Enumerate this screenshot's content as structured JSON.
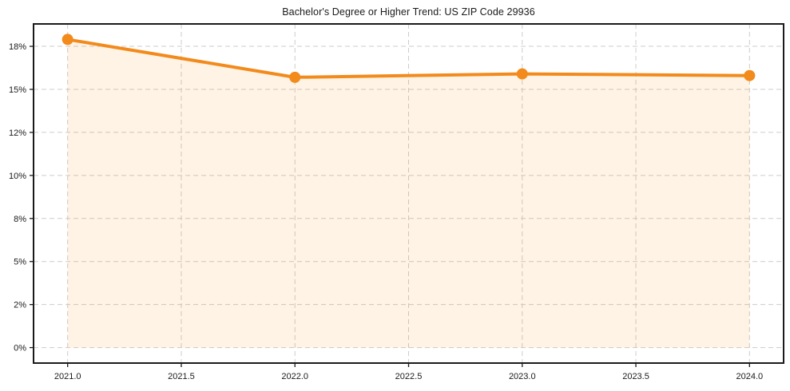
{
  "chart_data": {
    "type": "area",
    "title": "Bachelor's Degree or Higher Trend: US ZIP Code 29936",
    "x": [
      2021,
      2022,
      2023,
      2024
    ],
    "values": [
      17.9,
      15.7,
      15.9,
      15.8
    ],
    "xlabel": "",
    "ylabel": "",
    "xlim": [
      2020.85,
      2024.15
    ],
    "ylim": [
      -0.9,
      18.8
    ],
    "x_tick_values": [
      2021,
      2021.5,
      2022,
      2022.5,
      2023,
      2023.5,
      2024
    ],
    "x_tick_labels": [
      "2021.0",
      "2021.5",
      "2022.0",
      "2022.5",
      "2023.0",
      "2023.5",
      "2024.0"
    ],
    "y_tick_values": [
      0,
      2.5,
      5,
      7.5,
      10,
      12.5,
      15,
      17.5
    ],
    "y_tick_labels": [
      "0%",
      "2%",
      "5%",
      "8%",
      "10%",
      "12%",
      "15%",
      "18%"
    ],
    "grid": true,
    "grid_style": "dashed",
    "legend": "none",
    "fill_baseline": 0,
    "colors": {
      "line": "#f28a1c",
      "marker": "#f28a1c",
      "fill": "#ff8c00",
      "fill_opacity": 0.1,
      "grid": "#cccccc",
      "spine": "#1a1a1a",
      "tick": "#1a1a1a",
      "title": "#1a1a1a",
      "background": "#ffffff"
    }
  }
}
